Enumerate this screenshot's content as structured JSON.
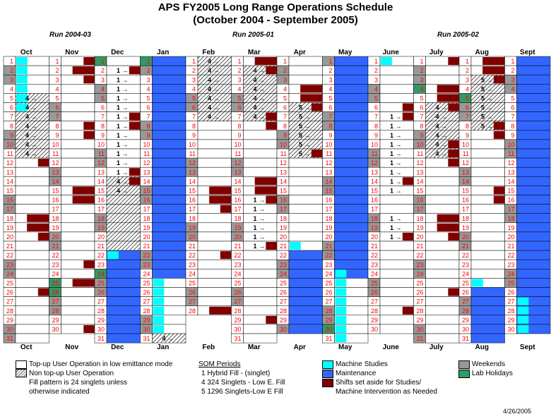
{
  "header": {
    "title": "APS FY2005 Long Range Operations Schedule",
    "subtitle": "(October  2004 - September 2005)"
  },
  "runs": [
    {
      "label": "Run 2004-03"
    },
    {
      "label": "Run 2005-01"
    },
    {
      "label": "Run 2005-02"
    }
  ],
  "legend": {
    "user_op": "Top-up User Operation in low emittance mode",
    "non_topup": "Non top-up User Operation",
    "fill1": "Fill pattern is 24 singlets unless",
    "fill2": "otherwise indicated",
    "som_title": "SOM Periods",
    "som1": "1   Hybrid Fill - (singlet)",
    "som4": "4   324 Singlets - Low E. Fill",
    "som5": "5   1296 Singlets-Low E Fill",
    "machine_studies": "Machine Studies",
    "maintenance": "Maintenance",
    "shifts1": "Shifts set aside for Studies/",
    "shifts2": "Machine Intervention as Needed",
    "weekends": "Weekends",
    "holidays": "Lab Holidays"
  },
  "colors": {
    "maintenance": "#3366ff",
    "machine_studies": "#00ffff",
    "shifts": "#800000",
    "weekend": "#999999",
    "holiday": "#339966",
    "day_number": "#ff0000"
  },
  "date_stamp": "4/26/2005",
  "chart_data": {
    "type": "table",
    "months": [
      {
        "name": "Oct",
        "days": 31,
        "first_weekday": 5,
        "holidays": [],
        "maintenance": [],
        "studies": [
          1,
          2,
          3,
          4,
          5,
          6
        ],
        "shifts": [
          [
            12,
            1
          ],
          [
            18,
            2
          ],
          [
            19,
            2
          ],
          [
            20,
            1
          ],
          [
            26,
            1
          ]
        ],
        "hatch": [
          5,
          6,
          7,
          8,
          9,
          10,
          11
        ],
        "som": [
          [
            5,
            "4"
          ],
          [
            6,
            "4"
          ],
          [
            7,
            "4"
          ],
          [
            8,
            "4"
          ],
          [
            9,
            "4"
          ],
          [
            10,
            "4"
          ],
          [
            11,
            "4"
          ]
        ]
      },
      {
        "name": "Nov",
        "days": 30,
        "first_weekday": 1,
        "holidays": [
          25,
          26
        ],
        "maintenance": [],
        "studies": [],
        "shifts": [
          [
            1,
            1
          ],
          [
            2,
            2
          ],
          [
            3,
            1
          ],
          [
            8,
            1
          ],
          [
            9,
            1
          ],
          [
            15,
            2
          ],
          [
            16,
            2
          ],
          [
            23,
            1
          ],
          [
            25,
            2
          ],
          [
            30,
            1
          ]
        ],
        "hatch": [],
        "som": []
      },
      {
        "name": "Dec",
        "days": 31,
        "first_weekday": 3,
        "holidays": [
          1,
          24
        ],
        "maintenance": [
          22,
          23,
          24,
          25,
          26,
          27,
          28,
          29,
          30,
          31
        ],
        "studies": [
          22
        ],
        "shifts": [
          [
            2,
            1
          ],
          [
            7,
            1
          ],
          [
            8,
            1
          ],
          [
            13,
            1
          ],
          [
            14,
            1
          ]
        ],
        "hatch": [
          14,
          15,
          16,
          17,
          18,
          19,
          20,
          21
        ],
        "som": [
          [
            2,
            "1"
          ],
          [
            3,
            "1"
          ],
          [
            4,
            "1"
          ],
          [
            5,
            "1"
          ],
          [
            6,
            "1"
          ],
          [
            7,
            "1"
          ],
          [
            8,
            "1"
          ],
          [
            9,
            "1"
          ],
          [
            10,
            "1"
          ],
          [
            11,
            "1"
          ],
          [
            12,
            "1"
          ],
          [
            13,
            "1"
          ],
          [
            14,
            "4"
          ],
          [
            15,
            "4"
          ]
        ]
      },
      {
        "name": "Jan",
        "days": 31,
        "first_weekday": 6,
        "holidays": [
          1
        ],
        "maintenance": [
          1,
          2,
          3,
          4,
          5,
          6,
          7,
          8,
          9,
          10,
          11,
          12,
          13,
          14,
          15,
          16,
          17,
          18,
          19,
          20,
          21,
          22,
          23,
          24
        ],
        "studies": [
          25,
          26,
          27,
          28,
          29,
          30
        ],
        "shifts": [],
        "hatch": [
          31
        ],
        "som": [
          [
            31,
            "4"
          ]
        ]
      },
      {
        "name": "Feb",
        "days": 28,
        "first_weekday": 2,
        "holidays": [],
        "maintenance": [],
        "studies": [],
        "shifts": [
          [
            15,
            2
          ],
          [
            16,
            2
          ],
          [
            17,
            1
          ],
          [
            22,
            1
          ],
          [
            28,
            2
          ]
        ],
        "hatch": [
          1,
          2,
          3,
          4,
          5,
          6,
          7
        ],
        "som": [
          [
            1,
            "4"
          ],
          [
            2,
            "4"
          ],
          [
            3,
            "4"
          ],
          [
            4,
            "4"
          ],
          [
            5,
            "4"
          ],
          [
            6,
            "4"
          ],
          [
            7,
            "4"
          ]
        ]
      },
      {
        "name": "Mar",
        "days": 31,
        "first_weekday": 2,
        "holidays": [],
        "maintenance": [],
        "studies": [],
        "shifts": [
          [
            1,
            2
          ],
          [
            2,
            1
          ],
          [
            7,
            1
          ],
          [
            8,
            1
          ],
          [
            14,
            2
          ],
          [
            15,
            2
          ],
          [
            16,
            1
          ],
          [
            21,
            1
          ],
          [
            29,
            1
          ]
        ],
        "hatch": [
          2,
          3,
          4,
          5,
          6,
          7
        ],
        "som": [
          [
            2,
            "4"
          ],
          [
            3,
            "4"
          ],
          [
            4,
            "4"
          ],
          [
            5,
            "4"
          ],
          [
            6,
            "4"
          ],
          [
            7,
            "4"
          ],
          [
            16,
            "1"
          ],
          [
            17,
            "1"
          ],
          [
            18,
            "1"
          ],
          [
            19,
            "1"
          ],
          [
            20,
            "1"
          ],
          [
            21,
            "1"
          ]
        ]
      },
      {
        "name": "Apr",
        "days": 30,
        "first_weekday": 5,
        "holidays": [],
        "maintenance": [
          22,
          23,
          24,
          25,
          26,
          27,
          28,
          29,
          30
        ],
        "studies": [
          21
        ],
        "shifts": [
          [
            4,
            2
          ],
          [
            5,
            2
          ],
          [
            6,
            1
          ],
          [
            11,
            1
          ]
        ],
        "hatch": [
          6,
          7,
          8,
          9,
          10,
          11
        ],
        "som": [
          [
            6,
            "5"
          ],
          [
            7,
            "5"
          ],
          [
            8,
            "5"
          ],
          [
            9,
            "5"
          ],
          [
            10,
            "5"
          ],
          [
            11,
            "5"
          ]
        ]
      },
      {
        "name": "May",
        "days": 31,
        "first_weekday": 0,
        "holidays": [
          30
        ],
        "maintenance": [
          1,
          2,
          3,
          4,
          5,
          6,
          7,
          8,
          9,
          10,
          11,
          12,
          13,
          14,
          15,
          16,
          17,
          18,
          19,
          20,
          21,
          22,
          23,
          24
        ],
        "studies": [
          24,
          25,
          26,
          27,
          28,
          29,
          30,
          31
        ],
        "shifts": [],
        "hatch": [],
        "som": []
      },
      {
        "name": "June",
        "days": 30,
        "first_weekday": 3,
        "holidays": [],
        "maintenance": [],
        "studies": [
          1
        ],
        "shifts": [
          [
            6,
            1
          ],
          [
            7,
            1
          ],
          [
            14,
            1
          ],
          [
            20,
            1
          ],
          [
            28,
            1
          ]
        ],
        "hatch": [],
        "som": [
          [
            7,
            "1"
          ],
          [
            8,
            "1"
          ],
          [
            9,
            "1"
          ],
          [
            10,
            "1"
          ],
          [
            11,
            "1"
          ],
          [
            12,
            "1"
          ],
          [
            13,
            "1"
          ],
          [
            14,
            "1"
          ],
          [
            15,
            "1"
          ],
          [
            18,
            "1"
          ],
          [
            19,
            "1"
          ],
          [
            20,
            "1"
          ]
        ]
      },
      {
        "name": "July",
        "days": 31,
        "first_weekday": 5,
        "holidays": [
          4
        ],
        "maintenance": [],
        "studies": [],
        "shifts": [
          [
            1,
            1
          ],
          [
            4,
            2
          ],
          [
            5,
            2
          ],
          [
            6,
            1
          ],
          [
            10,
            1
          ],
          [
            11,
            1
          ],
          [
            12,
            1
          ],
          [
            18,
            2
          ],
          [
            19,
            2
          ],
          [
            20,
            1
          ],
          [
            26,
            1
          ]
        ],
        "hatch": [
          6,
          7,
          8,
          9,
          10,
          11
        ],
        "som": [
          [
            6,
            "4"
          ],
          [
            7,
            "4"
          ],
          [
            8,
            "4"
          ],
          [
            9,
            "4"
          ],
          [
            10,
            "4"
          ],
          [
            11,
            "4"
          ]
        ]
      },
      {
        "name": "Aug",
        "days": 31,
        "first_weekday": 1,
        "holidays": [
          5
        ],
        "maintenance": [
          26,
          27,
          28,
          29,
          30,
          31
        ],
        "studies": [
          25
        ],
        "shifts": [
          [
            1,
            2
          ],
          [
            2,
            2
          ],
          [
            3,
            1
          ],
          [
            8,
            1
          ],
          [
            9,
            1
          ],
          [
            15,
            1
          ],
          [
            16,
            1
          ]
        ],
        "hatch": [
          3,
          4,
          5,
          6,
          7,
          8
        ],
        "som": [
          [
            3,
            "5"
          ],
          [
            4,
            "5"
          ],
          [
            5,
            "5"
          ],
          [
            6,
            "5"
          ],
          [
            7,
            "5"
          ],
          [
            8,
            "5"
          ]
        ]
      },
      {
        "name": "Sept",
        "days": 30,
        "first_weekday": 4,
        "holidays": [],
        "maintenance": [
          1,
          2,
          3,
          4,
          5,
          6,
          7,
          8,
          9,
          10,
          11,
          12,
          13,
          14,
          15,
          16,
          17,
          18,
          19,
          20,
          21,
          22,
          23,
          24,
          25,
          26,
          27,
          28,
          29,
          30
        ],
        "studies": [
          27,
          28,
          29,
          30
        ],
        "shifts": [],
        "hatch": [],
        "som": []
      }
    ]
  }
}
